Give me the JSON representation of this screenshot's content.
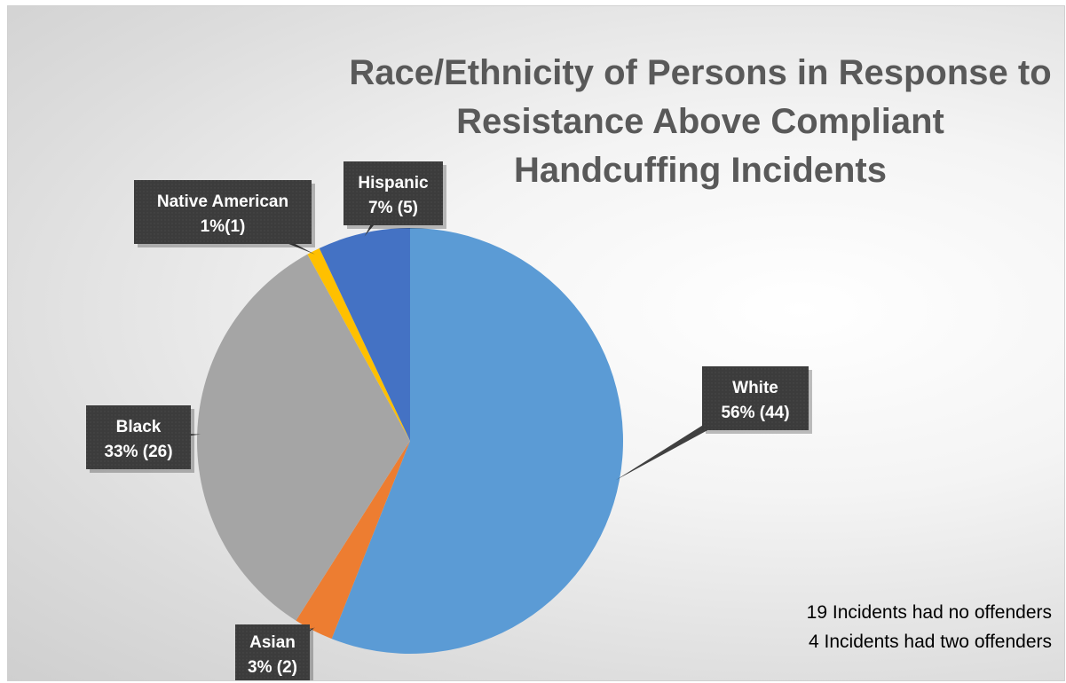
{
  "chart_data": {
    "type": "pie",
    "title_lines": [
      "Race/Ethnicity of Persons in Response to",
      "Resistance Above Compliant",
      "Handcuffing Incidents"
    ],
    "slices": [
      {
        "name": "White",
        "percent": 56,
        "count": 44,
        "label": "56% (44)",
        "color": "#5b9bd5"
      },
      {
        "name": "Asian",
        "percent": 3,
        "count": 2,
        "label": "3% (2)",
        "color": "#ed7d31"
      },
      {
        "name": "Black",
        "percent": 33,
        "count": 26,
        "label": "33% (26)",
        "color": "#a5a5a5"
      },
      {
        "name": "Native American",
        "percent": 1,
        "count": 1,
        "label": "1%(1)",
        "color": "#ffc000"
      },
      {
        "name": "Hispanic",
        "percent": 7,
        "count": 5,
        "label": "7% (5)",
        "color": "#4472c4"
      }
    ],
    "notes": [
      "19 Incidents had no offenders",
      "4 Incidents had two offenders"
    ],
    "callout_color": "#404040"
  }
}
